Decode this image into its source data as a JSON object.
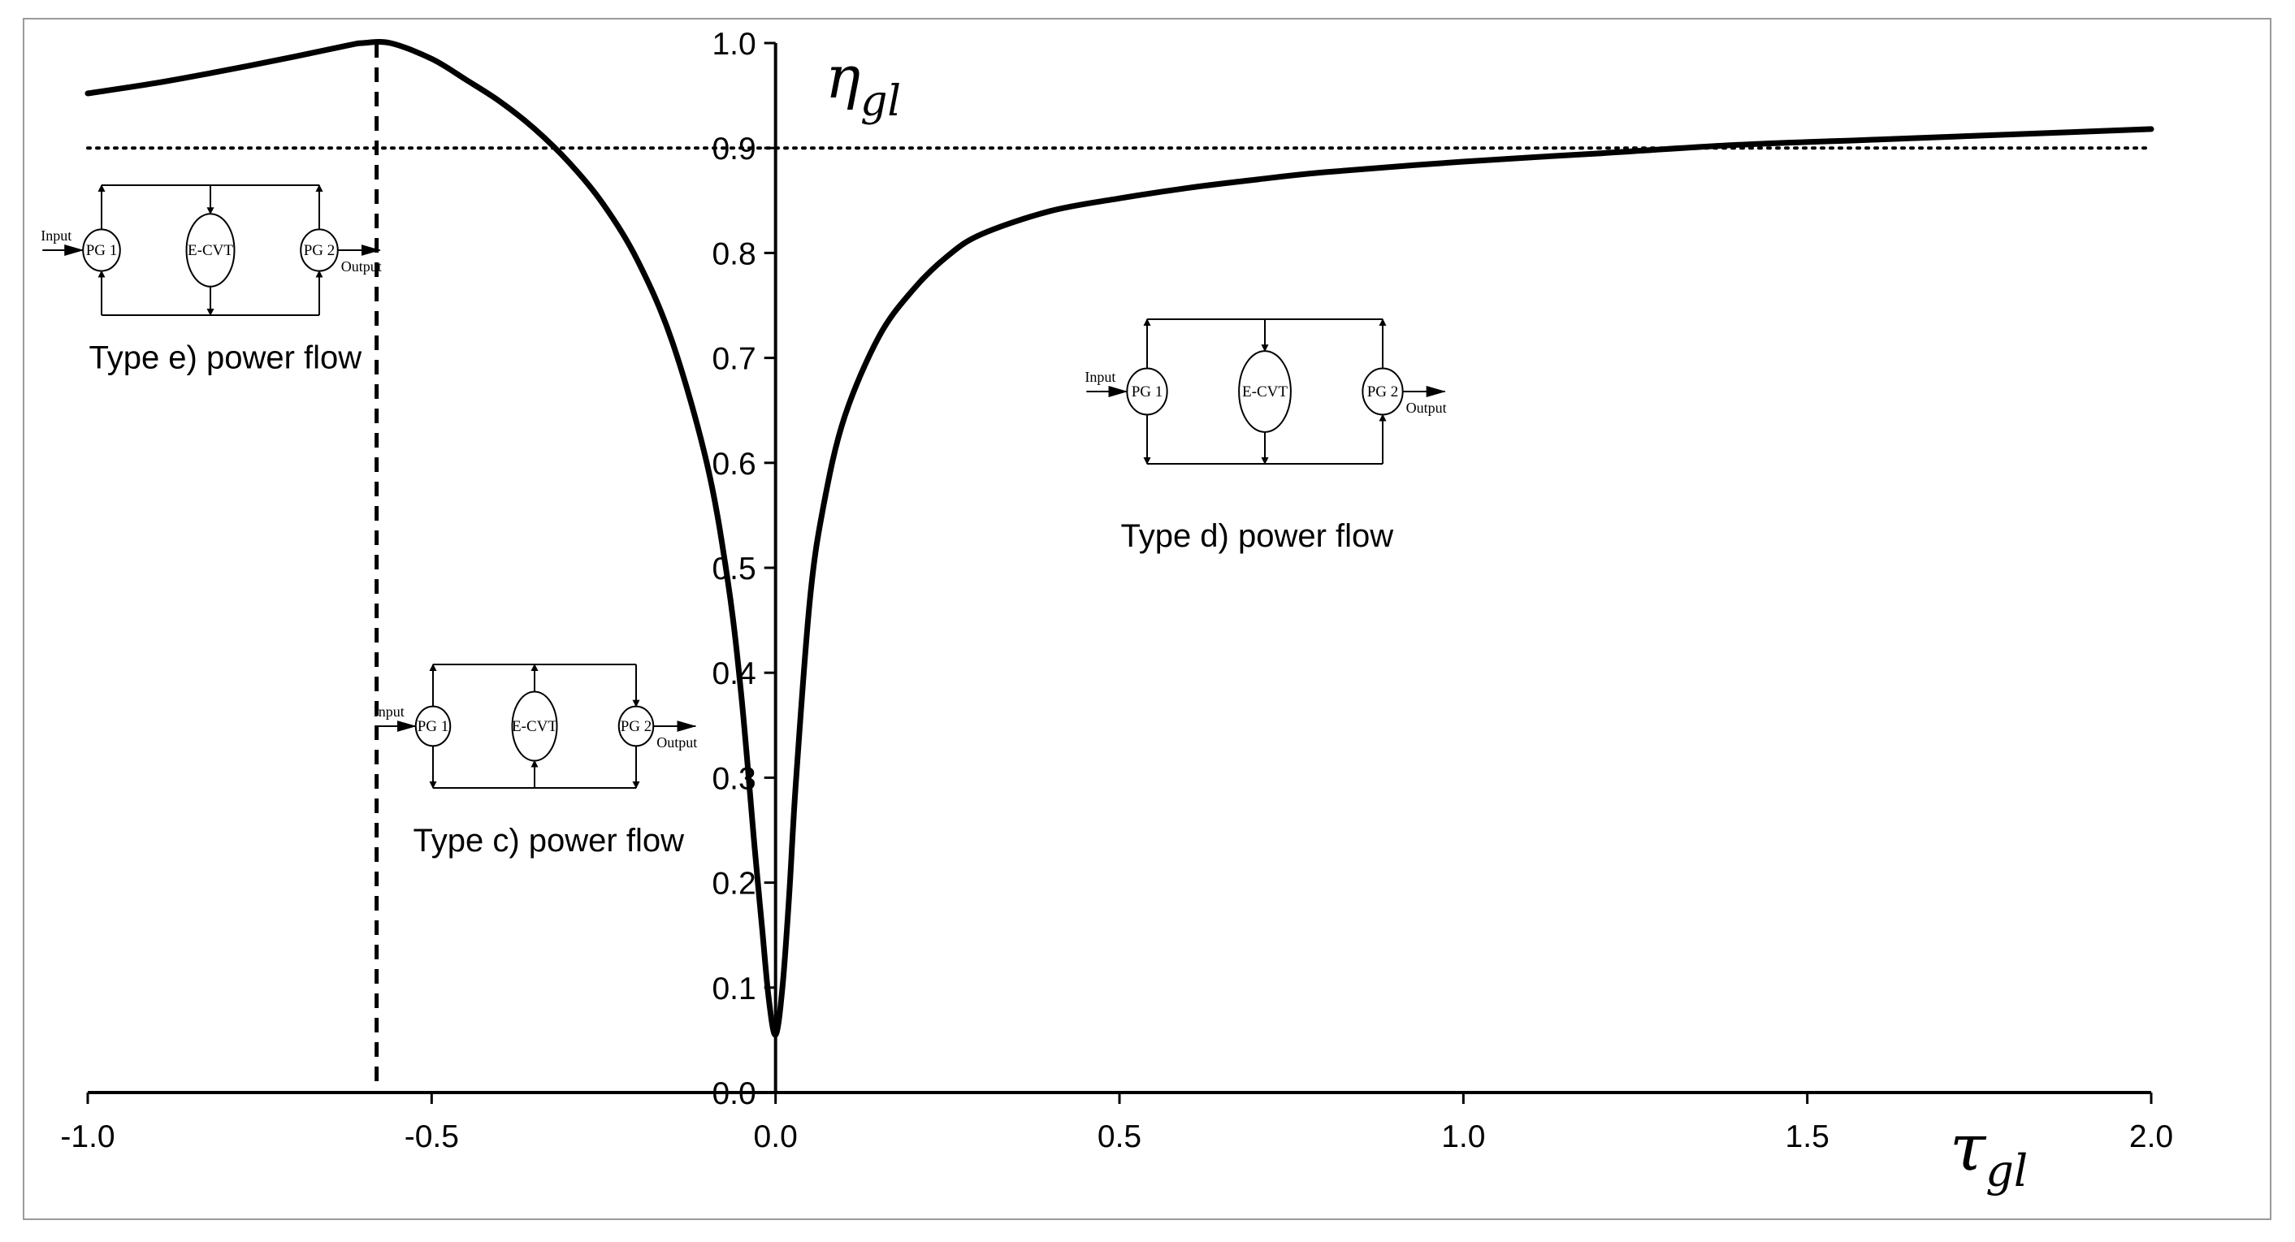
{
  "chart_data": {
    "type": "line",
    "title": "",
    "xlabel": "τ",
    "xlabel_sub": "gl",
    "ylabel": "η",
    "ylabel_sub": "gl",
    "xlim": [
      -1.0,
      2.0
    ],
    "ylim": [
      0.0,
      1.0
    ],
    "x_ticks": [
      "-1.0",
      "-0.5",
      "0.0",
      "0.5",
      "1.0",
      "1.5",
      "2.0"
    ],
    "y_ticks": [
      "0.0",
      "0.1",
      "0.2",
      "0.3",
      "0.4",
      "0.5",
      "0.6",
      "0.7",
      "0.8",
      "0.9",
      "1.0"
    ],
    "grid": false,
    "series": [
      {
        "style": "solid",
        "x": [
          -1.0,
          -0.9,
          -0.8,
          -0.7,
          -0.62,
          -0.6,
          -0.56,
          -0.5,
          -0.45,
          -0.4,
          -0.35,
          -0.3,
          -0.25,
          -0.2,
          -0.15,
          -0.1,
          -0.07,
          -0.05,
          -0.03,
          -0.02,
          -0.01,
          0.0,
          0.01,
          0.02,
          0.03,
          0.05,
          0.07,
          0.1,
          0.15,
          0.2,
          0.25,
          0.3,
          0.4,
          0.5,
          0.6,
          0.7,
          0.8,
          1.0,
          1.2,
          1.4,
          1.6,
          1.8,
          2.0
        ],
        "y": [
          0.952,
          0.962,
          0.974,
          0.987,
          0.998,
          1.0,
          1.0,
          0.985,
          0.965,
          0.944,
          0.918,
          0.886,
          0.846,
          0.792,
          0.715,
          0.6,
          0.49,
          0.38,
          0.23,
          0.16,
          0.09,
          0.055,
          0.1,
          0.19,
          0.3,
          0.47,
          0.56,
          0.643,
          0.72,
          0.765,
          0.797,
          0.818,
          0.84,
          0.852,
          0.862,
          0.87,
          0.877,
          0.887,
          0.895,
          0.903,
          0.908,
          0.913,
          0.918
        ]
      }
    ],
    "reference_lines": [
      {
        "orientation": "horizontal",
        "style": "dotted",
        "y": 0.9
      },
      {
        "orientation": "vertical",
        "style": "dashed",
        "x": -0.58
      }
    ],
    "annotations": [
      {
        "text": "Type e) power flow",
        "x": -0.8,
        "y": 0.69
      },
      {
        "text": "Type c) power flow",
        "x": -0.33,
        "y": 0.23
      },
      {
        "text": "Type d) power flow",
        "x": 0.7,
        "y": 0.52
      }
    ]
  },
  "diagrams": [
    {
      "id": "e",
      "input": "Input",
      "output": "Output",
      "pg1": "PG 1",
      "ecvt": "E-CVT",
      "pg2": "PG 2"
    },
    {
      "id": "c",
      "input": "Input",
      "output": "Output",
      "pg1": "PG 1",
      "ecvt": "E-CVT",
      "pg2": "PG 2"
    },
    {
      "id": "d",
      "input": "Input",
      "output": "Output",
      "pg1": "PG 1",
      "ecvt": "E-CVT",
      "pg2": "PG 2"
    }
  ]
}
